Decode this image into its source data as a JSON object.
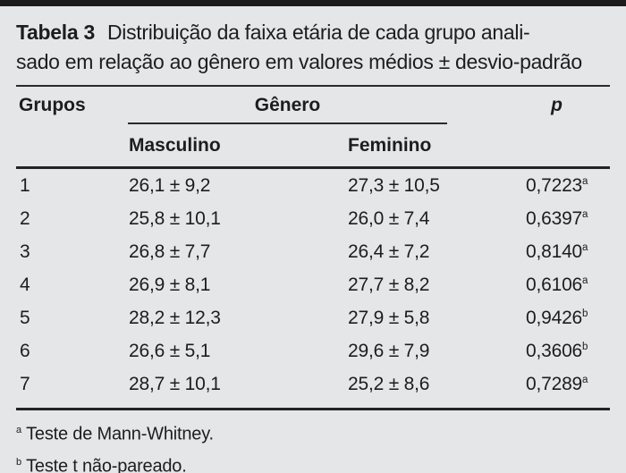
{
  "caption": {
    "label": "Tabela 3",
    "line1_rest": "Distribuição da faixa etária de cada grupo anali-",
    "line2": "sado em relação ao gênero em valores médios ± desvio-padrão"
  },
  "table": {
    "headers": {
      "group": "Grupos",
      "gender": "Gênero",
      "p": "p",
      "male": "Masculino",
      "female": "Feminino"
    },
    "rows": [
      {
        "group": "1",
        "male": "26,1 ± 9,2",
        "female": "27,3 ± 10,5",
        "p": "0,7223",
        "p_sup": "a"
      },
      {
        "group": "2",
        "male": "25,8 ± 10,1",
        "female": "26,0 ± 7,4",
        "p": "0,6397",
        "p_sup": "a"
      },
      {
        "group": "3",
        "male": "26,8 ± 7,7",
        "female": "26,4 ± 7,2",
        "p": "0,8140",
        "p_sup": "a"
      },
      {
        "group": "4",
        "male": "26,9 ± 8,1",
        "female": "27,7 ± 8,2",
        "p": "0,6106",
        "p_sup": "a"
      },
      {
        "group": "5",
        "male": "28,2 ± 12,3",
        "female": "27,9 ± 5,8",
        "p": "0,9426",
        "p_sup": "b"
      },
      {
        "group": "6",
        "male": "26,6 ± 5,1",
        "female": "29,6 ± 7,9",
        "p": "0,3606",
        "p_sup": "b"
      },
      {
        "group": "7",
        "male": "28,7 ± 10,1",
        "female": "25,2 ± 8,6",
        "p": "0,7289",
        "p_sup": "a"
      }
    ]
  },
  "footnotes": [
    {
      "marker": "a",
      "text": "Teste de Mann-Whitney."
    },
    {
      "marker": "b",
      "text": "Teste t não-pareado."
    }
  ],
  "colors": {
    "background": "#e5e6e7",
    "ink": "#1d1d1f",
    "rule": "#2a2a2b",
    "top_bar": "#1b1b1c"
  }
}
